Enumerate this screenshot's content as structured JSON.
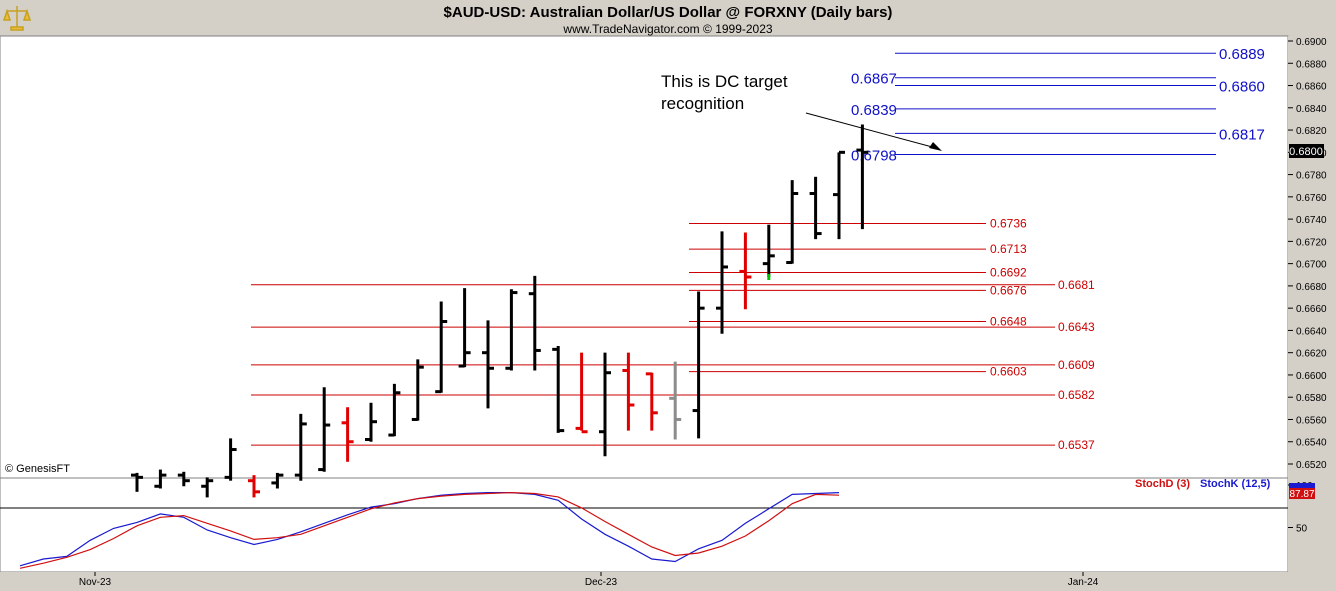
{
  "header": {
    "title": "$AUD-USD:  Australian Dollar/US Dollar @ FORXNY  (Daily bars)",
    "subtitle": "www.TradeNavigator.com © 1999-2023",
    "logo_icon": "balance-scale-logo-icon"
  },
  "watermark": "© GenesisFT",
  "annotation": "This is DC target recognition",
  "annotation_lines": [
    "This is DC target",
    "recognition"
  ],
  "price_badge": "0.6800",
  "stoch_badge": "87.87",
  "colors": {
    "up_bar": "#000000",
    "down_bar": "#e00000",
    "neutral_bar": "#8c8c8c",
    "blue_levels": "#1010c8",
    "red_levels": "#cc0000",
    "stochK": "#1a1ad0",
    "stochD": "#d01010",
    "price_badge_bg": "#000000",
    "stoch_badge_bg": "#d01010"
  },
  "chart_data": [
    {
      "type": "ohlc",
      "title": "$AUD-USD:  Australian Dollar/US Dollar @ FORXNY  (Daily bars)",
      "ylim": [
        0.6512,
        0.6905
      ],
      "yticks": [
        "0.6900",
        "0.6880",
        "0.6860",
        "0.6840",
        "0.6820",
        "0.6800",
        "0.6780",
        "0.6760",
        "0.6740",
        "0.6720",
        "0.6700",
        "0.6680",
        "0.6660",
        "0.6640",
        "0.6620",
        "0.6600",
        "0.6580",
        "0.6560",
        "0.6540",
        "0.6520"
      ],
      "yticks_values": [
        0.69,
        0.688,
        0.686,
        0.684,
        0.682,
        0.68,
        0.678,
        0.676,
        0.674,
        0.672,
        0.67,
        0.668,
        0.666,
        0.664,
        0.662,
        0.66,
        0.658,
        0.656,
        0.654,
        0.652
      ],
      "xticks": [
        "Nov-23",
        "Dec-23",
        "Jan-24"
      ],
      "bars": [
        {
          "h": 0.6512,
          "l": 0.6495,
          "o": 0.651,
          "c": 0.6508,
          "col": "up"
        },
        {
          "h": 0.6515,
          "l": 0.6498,
          "o": 0.65,
          "c": 0.651,
          "col": "up"
        },
        {
          "h": 0.6513,
          "l": 0.65,
          "o": 0.651,
          "c": 0.6505,
          "col": "up"
        },
        {
          "h": 0.6508,
          "l": 0.649,
          "o": 0.65,
          "c": 0.6505,
          "col": "up"
        },
        {
          "h": 0.6543,
          "l": 0.6505,
          "o": 0.6508,
          "c": 0.6533,
          "col": "up"
        },
        {
          "h": 0.651,
          "l": 0.649,
          "o": 0.6505,
          "c": 0.6495,
          "col": "down"
        },
        {
          "h": 0.6512,
          "l": 0.6498,
          "o": 0.6503,
          "c": 0.651,
          "col": "up"
        },
        {
          "h": 0.6565,
          "l": 0.6505,
          "o": 0.651,
          "c": 0.6556,
          "col": "up"
        },
        {
          "h": 0.6589,
          "l": 0.6513,
          "o": 0.6515,
          "c": 0.6555,
          "col": "up"
        },
        {
          "h": 0.6571,
          "l": 0.6522,
          "o": 0.6557,
          "c": 0.654,
          "col": "down"
        },
        {
          "h": 0.6575,
          "l": 0.654,
          "o": 0.6542,
          "c": 0.6558,
          "col": "up"
        },
        {
          "h": 0.6592,
          "l": 0.6545,
          "o": 0.6546,
          "c": 0.6584,
          "col": "up"
        },
        {
          "h": 0.6614,
          "l": 0.6559,
          "o": 0.656,
          "c": 0.6607,
          "col": "up"
        },
        {
          "h": 0.6666,
          "l": 0.6584,
          "o": 0.6585,
          "c": 0.6648,
          "col": "up"
        },
        {
          "h": 0.6678,
          "l": 0.6607,
          "o": 0.6608,
          "c": 0.662,
          "col": "up"
        },
        {
          "h": 0.6649,
          "l": 0.657,
          "o": 0.662,
          "c": 0.6606,
          "col": "up"
        },
        {
          "h": 0.6677,
          "l": 0.6604,
          "o": 0.6606,
          "c": 0.6674,
          "col": "up"
        },
        {
          "h": 0.6689,
          "l": 0.6604,
          "o": 0.6673,
          "c": 0.6622,
          "col": "up"
        },
        {
          "h": 0.6626,
          "l": 0.6548,
          "o": 0.6623,
          "c": 0.655,
          "col": "up"
        },
        {
          "h": 0.662,
          "l": 0.655,
          "o": 0.6552,
          "c": 0.6549,
          "col": "down"
        },
        {
          "h": 0.662,
          "l": 0.6527,
          "o": 0.6549,
          "c": 0.6602,
          "col": "up"
        },
        {
          "h": 0.662,
          "l": 0.655,
          "o": 0.6604,
          "c": 0.6573,
          "col": "down"
        },
        {
          "h": 0.6602,
          "l": 0.655,
          "o": 0.6601,
          "c": 0.6566,
          "col": "down"
        },
        {
          "h": 0.6612,
          "l": 0.6542,
          "o": 0.6579,
          "c": 0.656,
          "col": "neutral"
        },
        {
          "h": 0.6675,
          "l": 0.6543,
          "o": 0.6568,
          "c": 0.666,
          "col": "up"
        },
        {
          "h": 0.6729,
          "l": 0.6637,
          "o": 0.666,
          "c": 0.6697,
          "col": "up"
        },
        {
          "h": 0.6728,
          "l": 0.6659,
          "o": 0.6693,
          "c": 0.6688,
          "col": "down"
        },
        {
          "h": 0.6735,
          "l": 0.6688,
          "o": 0.67,
          "c": 0.6707,
          "col": "up"
        },
        {
          "h": 0.6775,
          "l": 0.67,
          "o": 0.6701,
          "c": 0.6763,
          "col": "up"
        },
        {
          "h": 0.6778,
          "l": 0.6722,
          "o": 0.6763,
          "c": 0.6727,
          "col": "up"
        },
        {
          "h": 0.68,
          "l": 0.6722,
          "o": 0.6762,
          "c": 0.68,
          "col": "up"
        },
        {
          "h": 0.6825,
          "l": 0.6731,
          "o": 0.6802,
          "c": 0.68,
          "col": "up"
        }
      ],
      "green_marker": 0.6688,
      "blue_levels_right": [
        {
          "label": "0.6889",
          "value": 0.6889
        },
        {
          "label": "0.6860",
          "value": 0.686
        },
        {
          "label": "0.6817",
          "value": 0.6817
        }
      ],
      "blue_levels_left": [
        {
          "label": "0.6867",
          "value": 0.6867
        },
        {
          "label": "0.6839",
          "value": 0.6839
        },
        {
          "label": "0.6798",
          "value": 0.6798
        }
      ],
      "red_levels_long": [
        {
          "label": "0.6681",
          "value": 0.6681
        },
        {
          "label": "0.6643",
          "value": 0.6643
        },
        {
          "label": "0.6609",
          "value": 0.6609
        },
        {
          "label": "0.6582",
          "value": 0.6582
        },
        {
          "label": "0.6537",
          "value": 0.6537
        }
      ],
      "red_levels_short": [
        {
          "label": "0.6736",
          "value": 0.6736
        },
        {
          "label": "0.6713",
          "value": 0.6713
        },
        {
          "label": "0.6692",
          "value": 0.6692
        },
        {
          "label": "0.6676",
          "value": 0.6676
        },
        {
          "label": "0.6648",
          "value": 0.6648
        },
        {
          "label": "0.6603",
          "value": 0.6603
        }
      ]
    },
    {
      "type": "line",
      "title": "",
      "ylim": [
        0,
        100
      ],
      "yticks": [
        "100",
        "50"
      ],
      "yticks_values": [
        100,
        50
      ],
      "series": [
        {
          "name": "StochK (12,5)",
          "values": [
            5,
            13,
            16,
            35,
            49,
            56,
            66,
            62,
            47,
            38,
            30,
            36,
            45,
            55,
            65,
            74,
            78,
            84,
            88,
            90,
            91,
            91,
            89,
            82,
            60,
            42,
            28,
            13,
            10,
            25,
            35,
            55,
            72,
            89,
            90,
            91
          ]
        },
        {
          "name": "StochD (3)",
          "values": [
            2,
            8,
            15,
            24,
            37,
            52,
            62,
            64,
            55,
            46,
            36,
            38,
            42,
            52,
            62,
            72,
            79,
            84,
            87,
            89,
            90,
            91,
            90,
            86,
            73,
            57,
            42,
            27,
            17,
            20,
            28,
            40,
            58,
            78,
            89,
            88
          ]
        }
      ]
    }
  ]
}
